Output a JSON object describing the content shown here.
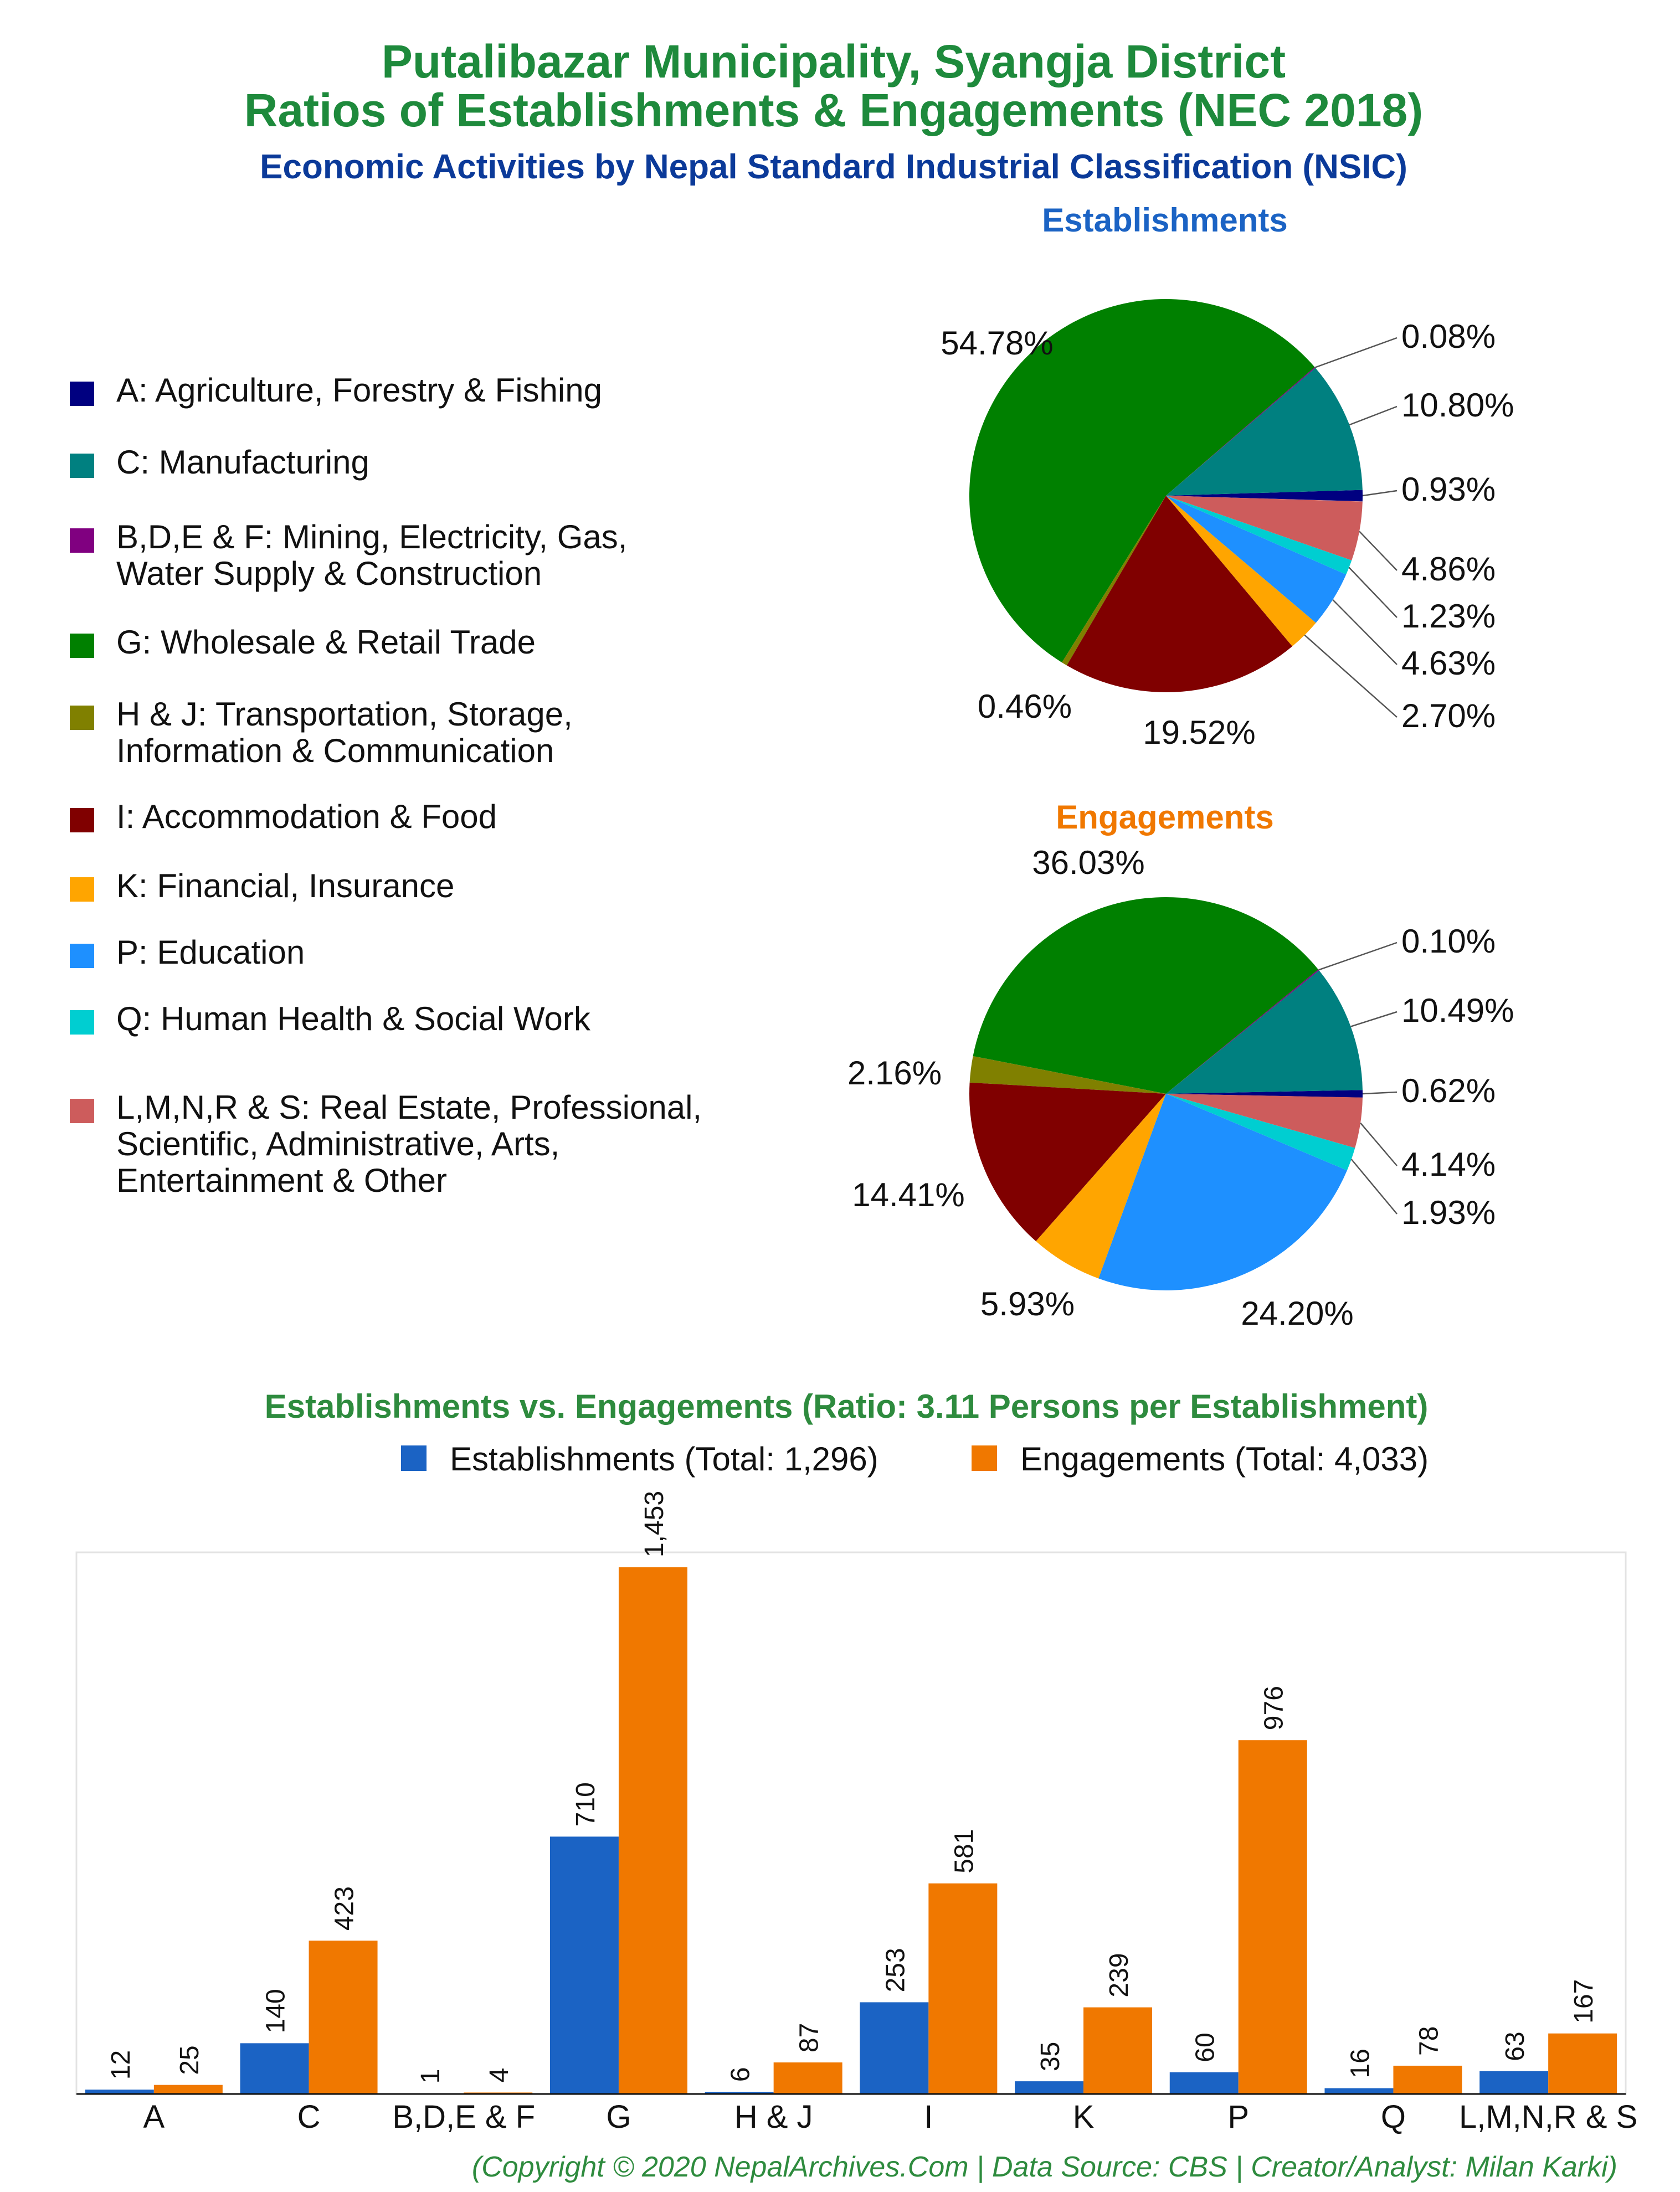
{
  "header": {
    "title_line1": "Putalibazar Municipality, Syangja District",
    "title_line2": "Ratios of Establishments & Engagements (NEC 2018)",
    "subtitle": "Economic Activities by Nepal Standard Industrial Classification (NSIC)"
  },
  "colors": {
    "title": "#1e8a3c",
    "subtitle": "#0b3a99",
    "establishments": "#1b63c4",
    "engagements": "#f07800",
    "bar_title": "#2e8b3e"
  },
  "legend": [
    {
      "key": "A",
      "label": "A: Agriculture, Forestry & Fishing",
      "color": "#000080"
    },
    {
      "key": "C",
      "label": "C: Manufacturing",
      "color": "#008080"
    },
    {
      "key": "BDEF",
      "label": "B,D,E & F: Mining, Electricity, Gas, Water Supply & Construction",
      "color": "#800080"
    },
    {
      "key": "G",
      "label": "G: Wholesale & Retail Trade",
      "color": "#008000"
    },
    {
      "key": "HJ",
      "label": "H & J: Transportation, Storage, Information & Communication",
      "color": "#808000"
    },
    {
      "key": "I",
      "label": "I: Accommodation & Food",
      "color": "#800000"
    },
    {
      "key": "K",
      "label": "K: Financial, Insurance",
      "color": "#ffa500"
    },
    {
      "key": "P",
      "label": "P: Education",
      "color": "#1e90ff"
    },
    {
      "key": "Q",
      "label": "Q: Human Health & Social Work",
      "color": "#00ced1"
    },
    {
      "key": "LMNRS",
      "label": "L,M,N,R & S: Real Estate, Professional, Scientific, Administrative, Arts, Entertainment & Other",
      "color": "#cd5c5c"
    }
  ],
  "footer": "(Copyright © 2020 NepalArchives.Com | Data Source: CBS | Creator/Analyst: Milan Karki)",
  "chart_data": [
    {
      "type": "pie",
      "title": "Establishments",
      "slices": [
        {
          "key": "A",
          "value": 0.93,
          "label": "0.93%"
        },
        {
          "key": "C",
          "value": 10.8,
          "label": "10.80%"
        },
        {
          "key": "BDEF",
          "value": 0.08,
          "label": "0.08%"
        },
        {
          "key": "G",
          "value": 54.78,
          "label": "54.78%"
        },
        {
          "key": "HJ",
          "value": 0.46,
          "label": "0.46%"
        },
        {
          "key": "I",
          "value": 19.52,
          "label": "19.52%"
        },
        {
          "key": "K",
          "value": 2.7,
          "label": "2.70%"
        },
        {
          "key": "P",
          "value": 4.63,
          "label": "4.63%"
        },
        {
          "key": "Q",
          "value": 1.23,
          "label": "1.23%"
        },
        {
          "key": "LMNRS",
          "value": 4.86,
          "label": "4.86%"
        }
      ]
    },
    {
      "type": "pie",
      "title": "Engagements",
      "slices": [
        {
          "key": "A",
          "value": 0.62,
          "label": "0.62%"
        },
        {
          "key": "C",
          "value": 10.49,
          "label": "10.49%"
        },
        {
          "key": "BDEF",
          "value": 0.1,
          "label": "0.10%"
        },
        {
          "key": "G",
          "value": 36.03,
          "label": "36.03%"
        },
        {
          "key": "HJ",
          "value": 2.16,
          "label": "2.16%"
        },
        {
          "key": "I",
          "value": 14.41,
          "label": "14.41%"
        },
        {
          "key": "K",
          "value": 5.93,
          "label": "5.93%"
        },
        {
          "key": "P",
          "value": 24.2,
          "label": "24.20%"
        },
        {
          "key": "Q",
          "value": 1.93,
          "label": "1.93%"
        },
        {
          "key": "LMNRS",
          "value": 4.14,
          "label": "4.14%"
        }
      ]
    },
    {
      "type": "bar",
      "title": "Establishments vs. Engagements (Ratio: 3.11 Persons per Establishment)",
      "categories": [
        "A",
        "C",
        "B,D,E & F",
        "G",
        "H & J",
        "I",
        "K",
        "P",
        "Q",
        "L,M,N,R & S"
      ],
      "series": [
        {
          "name": "Establishments (Total: 1,296)",
          "values": [
            12,
            140,
            1,
            710,
            6,
            253,
            35,
            60,
            16,
            63
          ]
        },
        {
          "name": "Engagements (Total: 4,033)",
          "values": [
            25,
            423,
            4,
            1453,
            87,
            581,
            239,
            976,
            78,
            167
          ]
        }
      ],
      "ylim": [
        0,
        1453
      ],
      "legend_position": "top-right"
    }
  ]
}
